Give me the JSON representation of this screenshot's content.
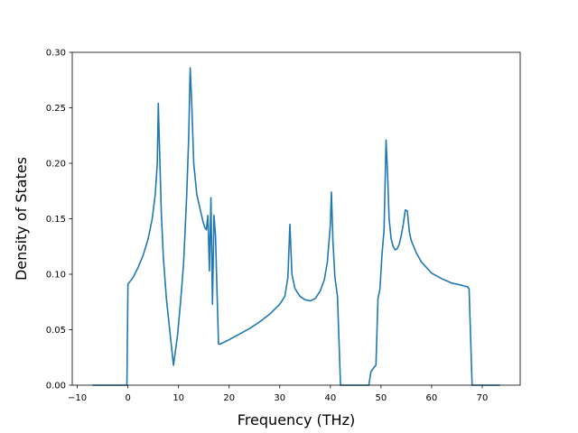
{
  "chart_data": {
    "type": "line",
    "xlabel": "Frequency (THz)",
    "ylabel": "Density of States",
    "xlim": [
      -11.0,
      77.5
    ],
    "ylim": [
      0.0,
      0.3
    ],
    "grid": false,
    "xticks": [
      -10,
      0,
      10,
      20,
      30,
      40,
      50,
      60,
      70
    ],
    "xtick_labels": [
      "−10",
      "0",
      "10",
      "20",
      "30",
      "40",
      "50",
      "60",
      "70"
    ],
    "yticks": [
      0.0,
      0.05,
      0.1,
      0.15,
      0.2,
      0.25,
      0.3
    ],
    "ytick_labels": [
      "0.00",
      "0.05",
      "0.10",
      "0.15",
      "0.20",
      "0.25",
      "0.30"
    ],
    "series": [
      {
        "color": "#1f77b4",
        "x": [
          -7.0,
          -0.2,
          0.0,
          1.0,
          2.0,
          3.0,
          4.0,
          4.8,
          5.4,
          5.8,
          6.0,
          6.2,
          6.6,
          7.0,
          7.6,
          8.2,
          9.0,
          9.8,
          10.4,
          11.0,
          11.6,
          12.0,
          12.3,
          12.6,
          13.0,
          13.6,
          14.2,
          14.8,
          15.2,
          15.5,
          15.8,
          16.1,
          16.4,
          16.7,
          17.0,
          17.3,
          17.6,
          17.9,
          18.2,
          20.0,
          22.0,
          24.0,
          26.0,
          28.0,
          30.0,
          31.0,
          31.6,
          32.0,
          32.4,
          33.0,
          34.0,
          35.0,
          36.0,
          37.0,
          38.0,
          38.8,
          39.4,
          40.0,
          40.2,
          40.5,
          40.9,
          41.4,
          42.0,
          44.0,
          46.0,
          47.6,
          48.0,
          48.6,
          49.0,
          49.4,
          49.8,
          50.2,
          50.6,
          51.0,
          51.3,
          51.6,
          52.0,
          52.4,
          52.8,
          53.2,
          53.6,
          54.0,
          54.4,
          54.8,
          55.2,
          55.6,
          56.0,
          57.0,
          58.0,
          60.0,
          62.0,
          63.0,
          64.0,
          65.0,
          66.0,
          66.6,
          67.0,
          67.4,
          68.0,
          70.0,
          72.0,
          73.5
        ],
        "y": [
          0.0,
          0.0,
          0.091,
          0.097,
          0.106,
          0.117,
          0.132,
          0.15,
          0.172,
          0.2,
          0.254,
          0.22,
          0.155,
          0.115,
          0.078,
          0.052,
          0.018,
          0.045,
          0.075,
          0.11,
          0.17,
          0.222,
          0.286,
          0.255,
          0.2,
          0.172,
          0.16,
          0.148,
          0.142,
          0.14,
          0.153,
          0.103,
          0.169,
          0.073,
          0.153,
          0.135,
          0.085,
          0.037,
          0.037,
          0.041,
          0.046,
          0.051,
          0.057,
          0.064,
          0.073,
          0.08,
          0.097,
          0.145,
          0.1,
          0.087,
          0.08,
          0.077,
          0.076,
          0.078,
          0.085,
          0.095,
          0.111,
          0.145,
          0.174,
          0.13,
          0.097,
          0.08,
          0.0,
          0.0,
          0.0,
          0.0,
          0.012,
          0.016,
          0.018,
          0.078,
          0.087,
          0.118,
          0.14,
          0.221,
          0.19,
          0.15,
          0.132,
          0.125,
          0.122,
          0.123,
          0.127,
          0.135,
          0.145,
          0.158,
          0.157,
          0.138,
          0.13,
          0.119,
          0.111,
          0.101,
          0.096,
          0.094,
          0.092,
          0.091,
          0.09,
          0.089,
          0.089,
          0.087,
          0.0,
          0.0,
          0.0,
          0.0
        ]
      }
    ]
  }
}
